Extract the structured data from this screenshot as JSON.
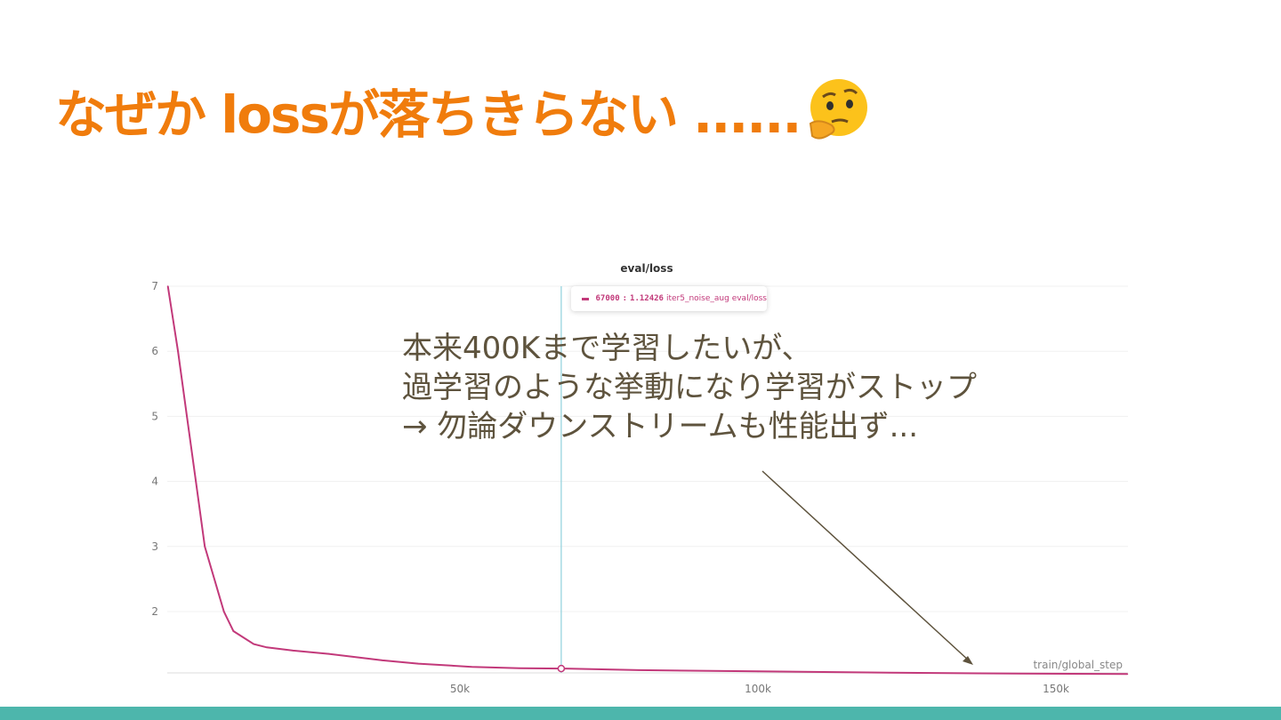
{
  "slide": {
    "title": "なぜか lossが落ちきらない ......",
    "emoji": "thinking-face",
    "annotation": [
      "本来400Kまで学習したいが、",
      "過学習のような挙動になり学習がストップ",
      "→ 勿論ダウンストリームも性能出ず..."
    ],
    "colors": {
      "title": "#f07c0c",
      "annotation": "#5e533d",
      "footer_bar": "#4db6ac"
    }
  },
  "chart_data": {
    "type": "line",
    "title": "eval/loss",
    "xlabel": "train/global_step",
    "ylabel": "",
    "xlim": [
      0,
      162000
    ],
    "ylim": [
      1.05,
      7
    ],
    "xticks": [
      50000,
      100000,
      150000
    ],
    "xtick_labels": [
      "50k",
      "100k",
      "150k"
    ],
    "yticks": [
      2,
      3,
      4,
      5,
      6,
      7
    ],
    "ytick_labels": [
      "2",
      "3",
      "4",
      "5",
      "6",
      "7"
    ],
    "grid": true,
    "series": [
      {
        "name": "iter5_noise_aug eval/loss",
        "color": "#c2397a",
        "x": [
          1000,
          2700,
          4200,
          5700,
          7200,
          10400,
          12000,
          15400,
          17600,
          22000,
          28000,
          32500,
          37000,
          43000,
          52000,
          60000,
          67000,
          80000,
          100000,
          122000,
          137000,
          162000
        ],
        "y": [
          7.0,
          6.0,
          5.0,
          4.0,
          3.0,
          2.0,
          1.7,
          1.5,
          1.45,
          1.4,
          1.35,
          1.3,
          1.25,
          1.2,
          1.15,
          1.13,
          1.12426,
          1.1,
          1.08,
          1.06,
          1.05,
          1.04
        ]
      }
    ],
    "hover": {
      "step": "67000",
      "value": "1.12426",
      "label": "iter5_noise_aug eval/loss",
      "line_color": "#8fd0dc"
    }
  }
}
